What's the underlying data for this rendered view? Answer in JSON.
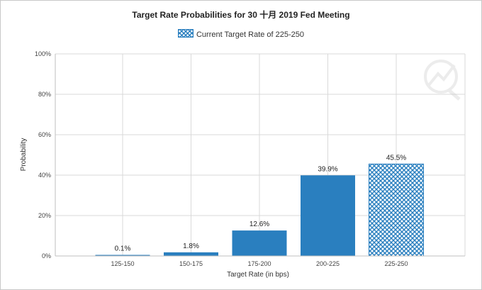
{
  "chart_data": {
    "type": "bar",
    "title": "Target Rate Probabilities for 30 十月 2019 Fed Meeting",
    "legend": {
      "label": "Current Target Rate of 225-250",
      "placement": "top-center"
    },
    "xlabel": "Target Rate (in bps)",
    "ylabel": "Probability",
    "categories": [
      "125-150",
      "150-175",
      "175-200",
      "200-225",
      "225-250"
    ],
    "values": [
      0.1,
      1.8,
      12.6,
      39.9,
      45.5
    ],
    "data_labels": [
      "0.1%",
      "1.8%",
      "12.6%",
      "39.9%",
      "45.5%"
    ],
    "highlighted_category": "225-250",
    "ylim": [
      0,
      100
    ],
    "y_ticks": [
      0,
      20,
      40,
      60,
      80,
      100
    ],
    "y_tick_labels": [
      "0%",
      "20%",
      "40%",
      "60%",
      "80%",
      "100%"
    ],
    "grid": true,
    "colors": {
      "bar": "#2a7fbf",
      "grid": "#d9d9d9",
      "axis": "#bfbfbf"
    }
  }
}
